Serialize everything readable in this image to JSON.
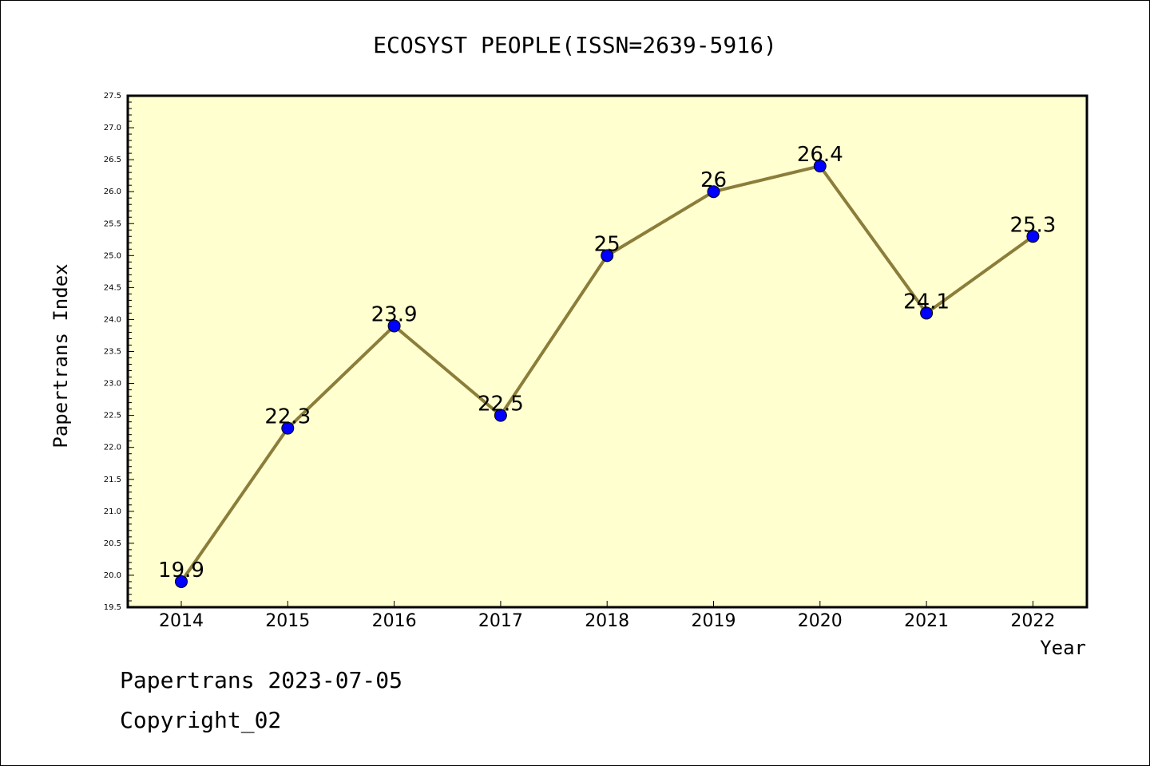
{
  "chart_data": {
    "type": "line",
    "title": "ECOSYST PEOPLE(ISSN=2639-5916)",
    "xlabel": "Year",
    "ylabel": "Papertrans Index",
    "x": [
      "2014",
      "2015",
      "2016",
      "2017",
      "2018",
      "2019",
      "2020",
      "2021",
      "2022"
    ],
    "values": [
      19.9,
      22.3,
      23.9,
      22.5,
      25,
      26,
      26.4,
      24.1,
      25.3
    ],
    "data_labels": [
      "19.9",
      "22.3",
      "23.9",
      "22.5",
      "25",
      "26",
      "26.4",
      "24.1",
      "25.3"
    ],
    "ylim": [
      19.5,
      27.5
    ],
    "yticks": [
      "19.5",
      "20.0",
      "20.5",
      "21.0",
      "21.5",
      "22.0",
      "22.5",
      "23.0",
      "23.5",
      "24.0",
      "24.5",
      "25.0",
      "25.5",
      "26.0",
      "26.5",
      "27.0",
      "27.5"
    ],
    "grid": false,
    "colors": {
      "plot_background": "#ffffd0",
      "line": "#8b7d3a",
      "marker": "#0000ff"
    }
  },
  "footer": {
    "date_text": "Papertrans 2023-07-05",
    "copyright_text": "Copyright_02"
  }
}
